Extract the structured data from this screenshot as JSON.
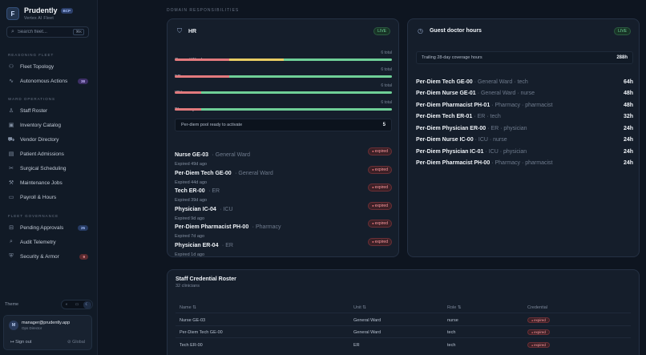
{
  "app": {
    "name": "Prudently",
    "badge": "BCP",
    "subtitle": "Vertex AI Fleet",
    "logo_letter": "F"
  },
  "search": {
    "placeholder": "Search fleet...",
    "shortcut": "⌘K"
  },
  "sidebar": {
    "sections": [
      {
        "title": "REASONING FLEET",
        "items": [
          {
            "label": "Fleet Topology",
            "icon": "topology-icon"
          },
          {
            "label": "Autonomous Actions",
            "icon": "activity-icon",
            "count": "38"
          }
        ]
      },
      {
        "title": "WARD OPERATIONS",
        "items": [
          {
            "label": "Staff Roster",
            "icon": "user-icon"
          },
          {
            "label": "Inventory Catalog",
            "icon": "box-icon"
          },
          {
            "label": "Vendor Directory",
            "icon": "truck-icon"
          },
          {
            "label": "Patient Admissions",
            "icon": "clipboard-icon"
          },
          {
            "label": "Surgical Scheduling",
            "icon": "scalpel-icon"
          },
          {
            "label": "Maintenance Jobs",
            "icon": "wrench-icon"
          },
          {
            "label": "Payroll & Hours",
            "icon": "wallet-icon"
          }
        ]
      },
      {
        "title": "FLEET GOVERNANCE",
        "items": [
          {
            "label": "Pending Approvals",
            "icon": "inbox-icon",
            "count": "25"
          },
          {
            "label": "Audit Telemetry",
            "icon": "audit-icon"
          },
          {
            "label": "Security & Armor",
            "icon": "shield-icon",
            "count": "9"
          }
        ]
      }
    ]
  },
  "theme": {
    "label": "Theme",
    "options": [
      "◐",
      "▭",
      "☾"
    ]
  },
  "user": {
    "initial": "M",
    "email": "manager@prudently.app",
    "role": "Ops Director",
    "signout": "Sign out",
    "scope": "Global"
  },
  "main": {
    "section_label": "DOMAIN RESPONSIBILITIES"
  },
  "hr": {
    "title": "HR",
    "live": "LIVE",
    "units": [
      {
        "name": "General Ward",
        "total": "6 total",
        "red": 0.25,
        "yellow": 0.25,
        "green": 0.5
      },
      {
        "name": "ER",
        "total": "6 total",
        "red": 0.25,
        "yellow": 0.0,
        "green": 0.75
      },
      {
        "name": "ICU",
        "total": "6 total",
        "red": 0.12,
        "yellow": 0.0,
        "green": 0.88
      },
      {
        "name": "Pharmacy",
        "total": "6 total",
        "red": 0.12,
        "yellow": 0.0,
        "green": 0.88
      }
    ],
    "pool": {
      "label": "Per-diem pool ready to activate",
      "value": "5"
    },
    "expired_badge": "expired",
    "expired": [
      {
        "name": "Nurse GE-03",
        "unit": "General Ward",
        "sub": "Expired 49d ago"
      },
      {
        "name": "Per-Diem Tech GE-00",
        "unit": "General Ward",
        "sub": "Expired 44d ago"
      },
      {
        "name": "Tech ER-00",
        "unit": "ER",
        "sub": "Expired 39d ago"
      },
      {
        "name": "Physician IC-04",
        "unit": "ICU",
        "sub": "Expired 9d ago"
      },
      {
        "name": "Per-Diem Pharmacist PH-00",
        "unit": "Pharmacy",
        "sub": "Expired 7d ago"
      },
      {
        "name": "Physician ER-04",
        "unit": "ER",
        "sub": "Expired 1d ago"
      }
    ]
  },
  "guest": {
    "title": "Guest doctor hours",
    "live": "LIVE",
    "trailing": {
      "label": "Trailing 28-day coverage hours",
      "value": "288h"
    },
    "rows": [
      {
        "name": "Per-Diem Tech GE-00",
        "meta": "· General Ward · tech",
        "hours": "64h"
      },
      {
        "name": "Per-Diem Nurse GE-01",
        "meta": "· General Ward · nurse",
        "hours": "48h"
      },
      {
        "name": "Per-Diem Pharmacist PH-01",
        "meta": "· Pharmacy · pharmacist",
        "hours": "48h"
      },
      {
        "name": "Per-Diem Tech ER-01",
        "meta": "· ER · tech",
        "hours": "32h"
      },
      {
        "name": "Per-Diem Physician ER-00",
        "meta": "· ER · physician",
        "hours": "24h"
      },
      {
        "name": "Per-Diem Nurse IC-00",
        "meta": "· ICU · nurse",
        "hours": "24h"
      },
      {
        "name": "Per-Diem Physician IC-01",
        "meta": "· ICU · physician",
        "hours": "24h"
      },
      {
        "name": "Per-Diem Pharmacist PH-00",
        "meta": "· Pharmacy · pharmacist",
        "hours": "24h"
      }
    ]
  },
  "roster": {
    "title": "Staff Credential Roster",
    "subtitle": "32 clinicians",
    "columns": [
      "Name ⇅",
      "Unit ⇅",
      "Role ⇅",
      "Credential"
    ],
    "rows": [
      {
        "name": "Nurse GE-03",
        "unit": "General Ward",
        "role": "nurse",
        "credential": "expired"
      },
      {
        "name": "Per-Diem Tech GE-00",
        "unit": "General Ward",
        "role": "tech",
        "credential": "expired"
      },
      {
        "name": "Tech ER-00",
        "unit": "ER",
        "role": "tech",
        "credential": "expired"
      }
    ]
  },
  "colors": {
    "accent": "#a9c2ff",
    "live": "#6fd39a",
    "expired": "#ff9aa1",
    "bar_red": "#e27a7d",
    "bar_yellow": "#e7cc63",
    "bar_green": "#6fcf97"
  }
}
